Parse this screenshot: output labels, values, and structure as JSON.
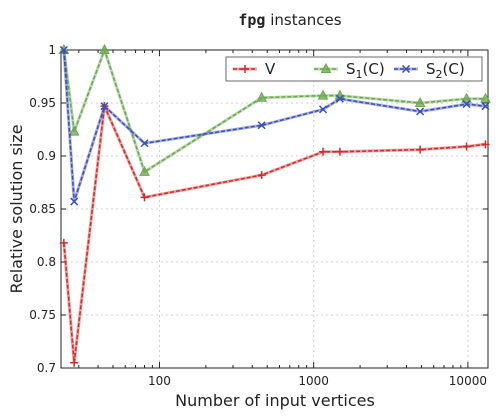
{
  "chart_data": {
    "type": "line",
    "title": {
      "code": "fpg",
      "text": " instances"
    },
    "xlabel": "Number of input vertices",
    "ylabel": "Relative solution size",
    "x_scale": "log",
    "xlim": [
      23,
      13500
    ],
    "ylim": [
      0.7,
      1.0
    ],
    "x_ticks": [
      {
        "value": 100,
        "label": "100"
      },
      {
        "value": 1000,
        "label": "1000"
      },
      {
        "value": 10000,
        "label": "10000"
      }
    ],
    "y_ticks": [
      {
        "value": 0.7,
        "label": "0.7"
      },
      {
        "value": 0.75,
        "label": "0.75"
      },
      {
        "value": 0.8,
        "label": "0.8"
      },
      {
        "value": 0.85,
        "label": "0.85"
      },
      {
        "value": 0.9,
        "label": "0.9"
      },
      {
        "value": 0.95,
        "label": "0.95"
      },
      {
        "value": 1,
        "label": "1"
      }
    ],
    "grid": true,
    "legend_position": "top-right",
    "series": [
      {
        "name": "V",
        "name_base": "V",
        "name_sub": "",
        "color": "#d42a2a",
        "marker": "plus",
        "points": [
          [
            24,
            0.818
          ],
          [
            28,
            0.705
          ],
          [
            44,
            0.947
          ],
          [
            80,
            0.861
          ],
          [
            460,
            0.882
          ],
          [
            1150,
            0.904
          ],
          [
            1480,
            0.904
          ],
          [
            4900,
            0.906
          ],
          [
            9800,
            0.909
          ],
          [
            13000,
            0.911
          ]
        ]
      },
      {
        "name": "S1(C)",
        "name_base": "S",
        "name_sub": "1",
        "name_suffix": "(C)",
        "color": "#6aa84f",
        "marker": "triangle",
        "points": [
          [
            24,
            1.0
          ],
          [
            28,
            0.923
          ],
          [
            44,
            1.0
          ],
          [
            80,
            0.885
          ],
          [
            460,
            0.955
          ],
          [
            1150,
            0.957
          ],
          [
            1480,
            0.957
          ],
          [
            4900,
            0.95
          ],
          [
            9800,
            0.954
          ],
          [
            13000,
            0.954
          ]
        ]
      },
      {
        "name": "S2(C)",
        "name_base": "S",
        "name_sub": "2",
        "name_suffix": "(C)",
        "color": "#3b4fb5",
        "marker": "cross",
        "points": [
          [
            24,
            1.0
          ],
          [
            28,
            0.857
          ],
          [
            44,
            0.947
          ],
          [
            80,
            0.912
          ],
          [
            460,
            0.929
          ],
          [
            1150,
            0.944
          ],
          [
            1480,
            0.954
          ],
          [
            4900,
            0.942
          ],
          [
            9800,
            0.949
          ],
          [
            13000,
            0.947
          ]
        ]
      }
    ]
  }
}
